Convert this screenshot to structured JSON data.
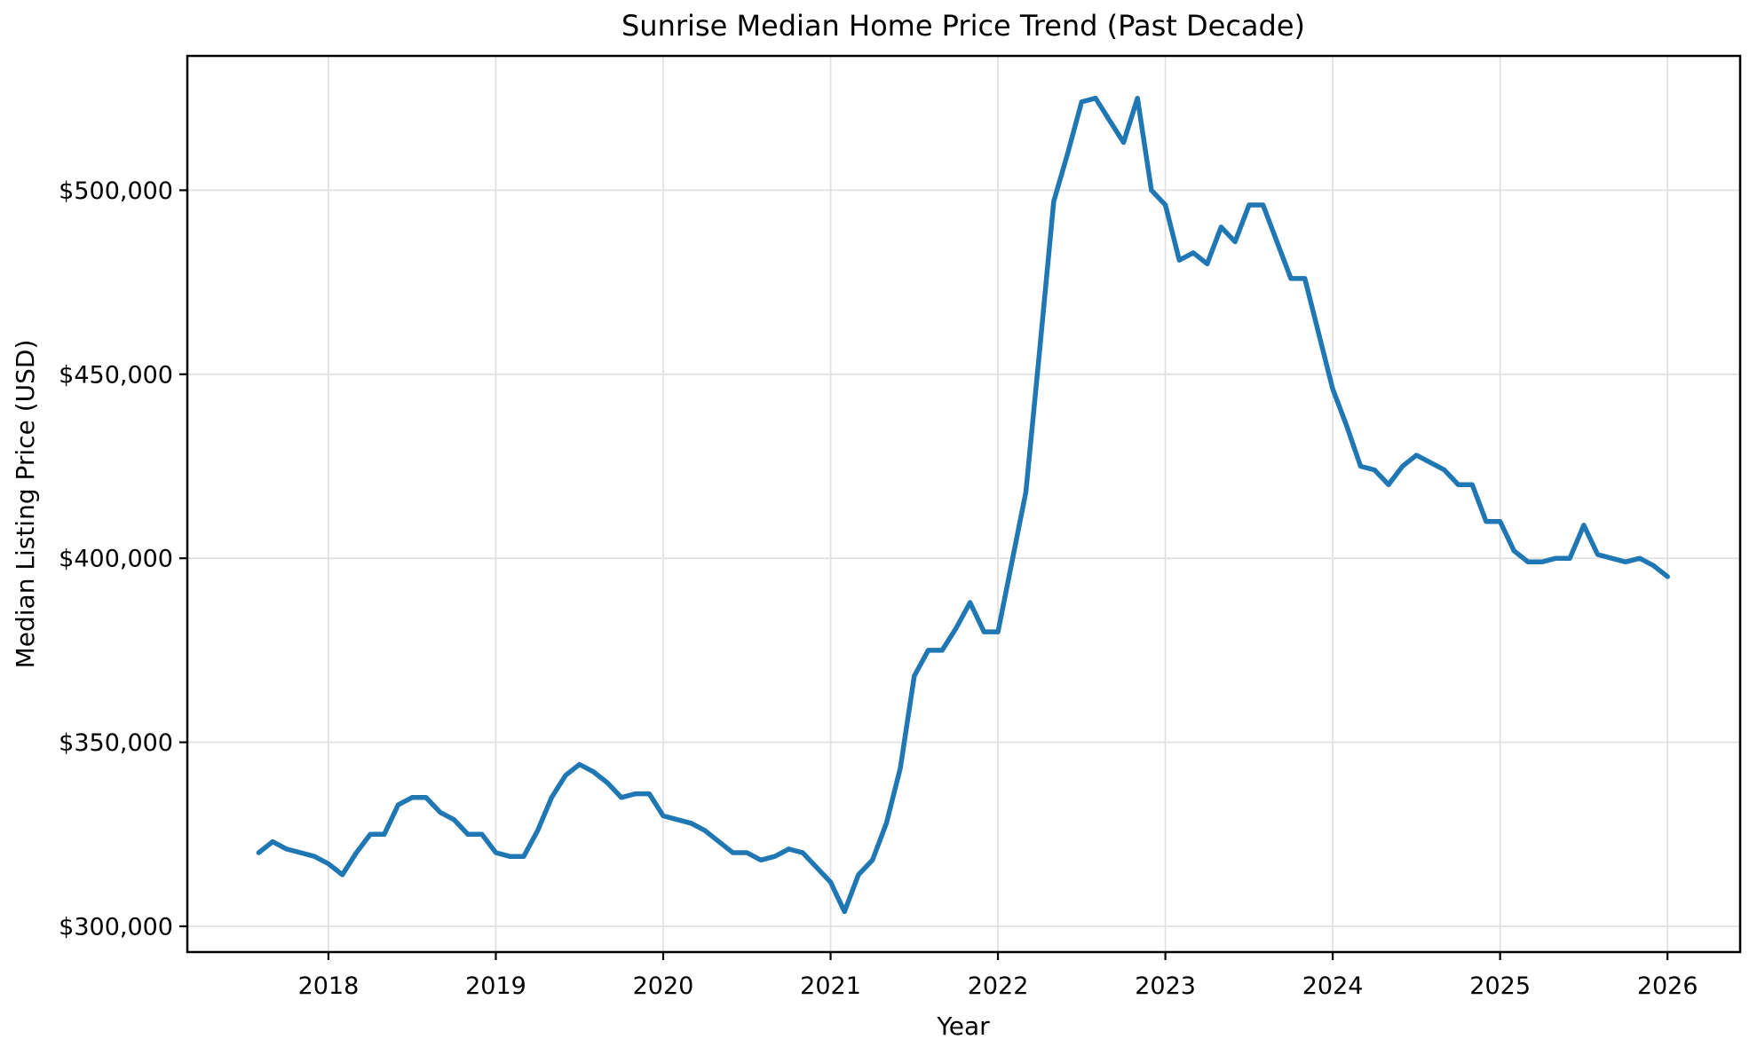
{
  "chart_data": {
    "type": "line",
    "title": "Sunrise Median Home Price Trend (Past Decade)",
    "xlabel": "Year",
    "ylabel": "Median Listing Price (USD)",
    "grid": true,
    "legend": false,
    "background_color": "#ffffff",
    "line_color": "#1f77b4",
    "xlim": [
      2017.157,
      2026.434
    ],
    "ylim": [
      293000,
      536500
    ],
    "x_ticks": [
      {
        "value": 2018,
        "label": "2018"
      },
      {
        "value": 2019,
        "label": "2019"
      },
      {
        "value": 2020,
        "label": "2020"
      },
      {
        "value": 2021,
        "label": "2021"
      },
      {
        "value": 2022,
        "label": "2022"
      },
      {
        "value": 2023,
        "label": "2023"
      },
      {
        "value": 2024,
        "label": "2024"
      },
      {
        "value": 2025,
        "label": "2025"
      },
      {
        "value": 2026,
        "label": "2026"
      }
    ],
    "y_ticks": [
      {
        "value": 300000,
        "label": "$300,000"
      },
      {
        "value": 350000,
        "label": "$350,000"
      },
      {
        "value": 400000,
        "label": "$400,000"
      },
      {
        "value": 450000,
        "label": "$450,000"
      },
      {
        "value": 500000,
        "label": "$500,000"
      }
    ],
    "series": [
      {
        "name": "Median Listing Price",
        "frequency": "monthly",
        "start_year": 2017,
        "start_month": 8,
        "values": [
          320000,
          323000,
          321000,
          320000,
          319000,
          317000,
          314000,
          320000,
          325000,
          325000,
          333000,
          335000,
          335000,
          331000,
          329000,
          325000,
          325000,
          320000,
          319000,
          319000,
          326000,
          335000,
          341000,
          344000,
          342000,
          339000,
          335000,
          336000,
          336000,
          330000,
          329000,
          328000,
          326000,
          323000,
          320000,
          320000,
          318000,
          319000,
          321000,
          320000,
          316000,
          312000,
          304000,
          314000,
          318000,
          328000,
          343000,
          368000,
          375000,
          375000,
          381000,
          388000,
          380000,
          380000,
          399000,
          418000,
          457000,
          497000,
          510000,
          524000,
          525000,
          519000,
          513000,
          525000,
          500000,
          496000,
          481000,
          483000,
          480000,
          490000,
          486000,
          496000,
          496000,
          486000,
          476000,
          476000,
          461000,
          446000,
          436000,
          425000,
          424000,
          420000,
          425000,
          428000,
          426000,
          424000,
          420000,
          420000,
          410000,
          410000,
          402000,
          399000,
          399000,
          400000,
          400000,
          409000,
          401000,
          400000,
          399000,
          400000,
          398000,
          395000
        ]
      }
    ]
  }
}
